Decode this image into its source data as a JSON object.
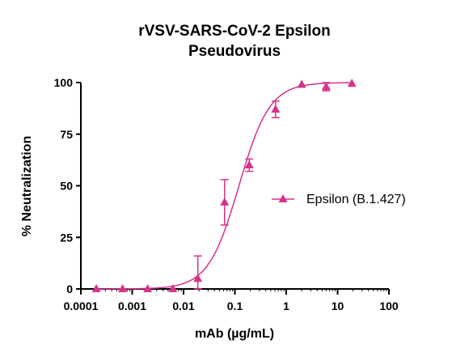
{
  "chart_data": {
    "type": "scatter",
    "title_lines": [
      "rVSV-SARS-CoV-2 Epsilon",
      "Pseudovirus"
    ],
    "xlabel": "mAb (µg/mL)",
    "ylabel": "% Neutralization",
    "x_scale": "log",
    "xlim": [
      0.0001,
      100
    ],
    "ylim": [
      0,
      100
    ],
    "x_ticks": [
      {
        "value": 0.0001,
        "label": "0.0001"
      },
      {
        "value": 0.001,
        "label": "0.001"
      },
      {
        "value": 0.01,
        "label": "0.01"
      },
      {
        "value": 0.1,
        "label": "0.1"
      },
      {
        "value": 1,
        "label": "1"
      },
      {
        "value": 10,
        "label": "10"
      },
      {
        "value": 100,
        "label": "100"
      }
    ],
    "y_ticks": [
      {
        "value": 0,
        "label": "0"
      },
      {
        "value": 25,
        "label": "25"
      },
      {
        "value": 50,
        "label": "50"
      },
      {
        "value": 75,
        "label": "75"
      },
      {
        "value": 100,
        "label": "100"
      }
    ],
    "grid": false,
    "legend_position": "right",
    "color": "#d6338a",
    "series": [
      {
        "name": "Epsilon (B.1.427)",
        "points": [
          {
            "x": 0.0002,
            "y": 0,
            "err": 0
          },
          {
            "x": 0.00065,
            "y": 0,
            "err": 0
          },
          {
            "x": 0.002,
            "y": 0,
            "err": 0
          },
          {
            "x": 0.0062,
            "y": 0,
            "err": 0
          },
          {
            "x": 0.019,
            "y": 5,
            "err": 11
          },
          {
            "x": 0.063,
            "y": 42,
            "err": 11
          },
          {
            "x": 0.19,
            "y": 60,
            "err": 3
          },
          {
            "x": 0.62,
            "y": 87,
            "err": 4
          },
          {
            "x": 2,
            "y": 99,
            "err": 0
          },
          {
            "x": 6,
            "y": 98,
            "err": 2
          },
          {
            "x": 19,
            "y": 99.5,
            "err": 0
          }
        ],
        "fit": {
          "bottom": 0,
          "top": 100,
          "ec50": 0.12,
          "hill": 1.45
        }
      }
    ]
  }
}
